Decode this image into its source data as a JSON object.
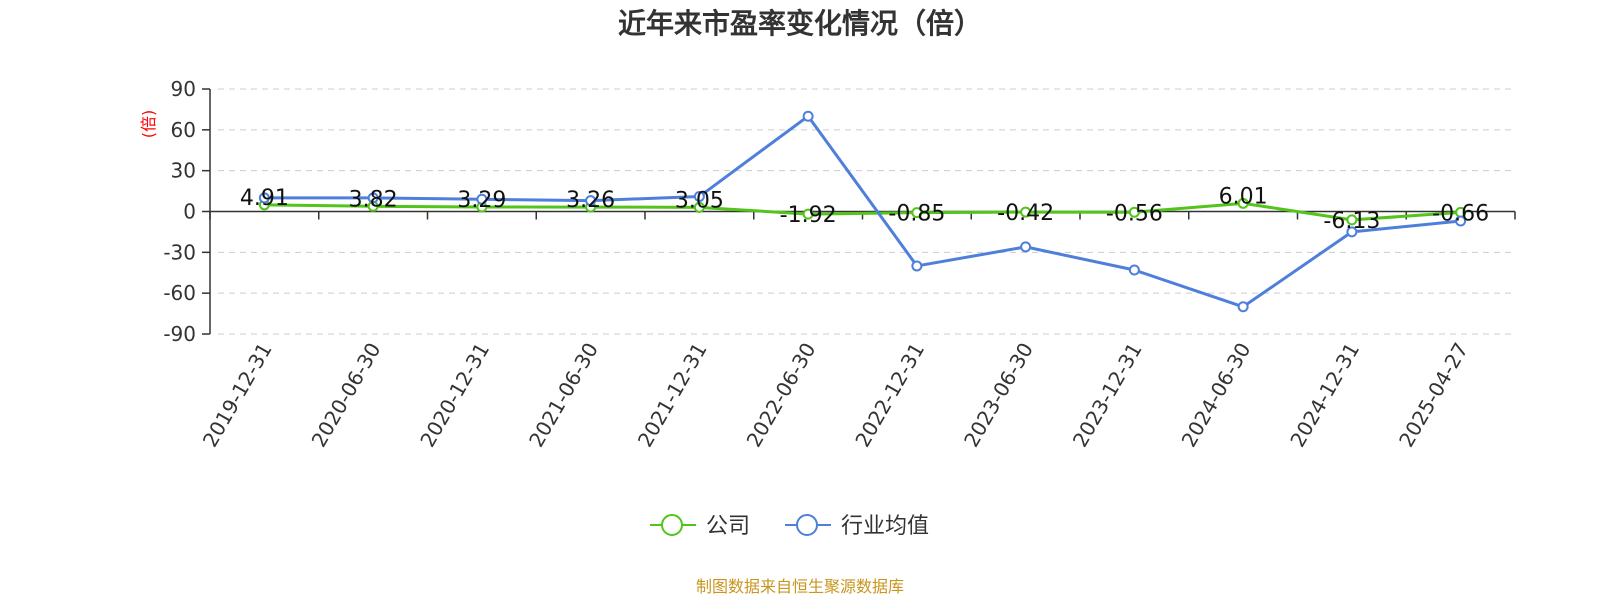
{
  "chart_data": {
    "type": "line",
    "title": "近年来市盈率变化情况（倍）",
    "ylabel": "(倍)",
    "xlabel": "",
    "ylim": [
      -90,
      90
    ],
    "yticks": [
      90,
      60,
      30,
      0,
      -30,
      -60,
      -90
    ],
    "grid": true,
    "legend_position": "bottom",
    "categories": [
      "2019-12-31",
      "2020-06-30",
      "2020-12-31",
      "2021-06-30",
      "2021-12-31",
      "2022-06-30",
      "2022-12-31",
      "2023-06-30",
      "2023-12-31",
      "2024-06-30",
      "2024-12-31",
      "2025-04-27"
    ],
    "series": [
      {
        "name": "公司",
        "color": "#52c41a",
        "values": [
          4.91,
          3.82,
          3.29,
          3.26,
          3.05,
          -1.92,
          -0.85,
          -0.42,
          -0.56,
          6.01,
          -6.13,
          -0.66
        ],
        "labels": [
          "4.91",
          "3.82",
          "3.29",
          "3.26",
          "3.05",
          "-1.92",
          "-0.85",
          "-0.42",
          "-0.56",
          "6.01",
          "-6.13",
          "-0.66"
        ]
      },
      {
        "name": "行业均值",
        "color": "#4e7fdb",
        "values": [
          10,
          10,
          9,
          8,
          11,
          70,
          -40,
          -26,
          -43,
          -70,
          -15,
          -7
        ]
      }
    ],
    "source": "制图数据来自恒生聚源数据库"
  }
}
